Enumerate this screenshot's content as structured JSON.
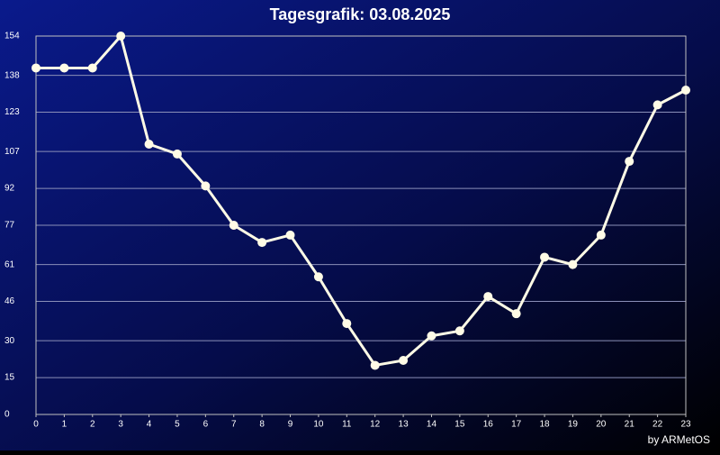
{
  "chart_data": {
    "type": "line",
    "title": "Tagesgrafik: 03.08.2025",
    "footer": "by ARMetOS",
    "x": [
      0,
      1,
      2,
      3,
      4,
      5,
      6,
      7,
      8,
      9,
      10,
      11,
      12,
      13,
      14,
      15,
      16,
      17,
      18,
      19,
      20,
      21,
      22,
      23
    ],
    "series": [
      {
        "color": "#fffbe6",
        "values": [
          141,
          141,
          141,
          154,
          110,
          106,
          93,
          77,
          70,
          73,
          56,
          37,
          20,
          22,
          32,
          34,
          48,
          41,
          64,
          61,
          73,
          103,
          126,
          132
        ]
      }
    ],
    "xlim": [
      0,
      23
    ],
    "xticks": [
      0,
      1,
      2,
      3,
      4,
      5,
      6,
      7,
      8,
      9,
      10,
      11,
      12,
      13,
      14,
      15,
      16,
      17,
      18,
      19,
      20,
      21,
      22,
      23
    ],
    "ylim": [
      0,
      154
    ],
    "yticks": [
      0,
      15,
      30,
      46,
      61,
      77,
      92,
      107,
      123,
      138,
      154
    ],
    "grid": true
  }
}
